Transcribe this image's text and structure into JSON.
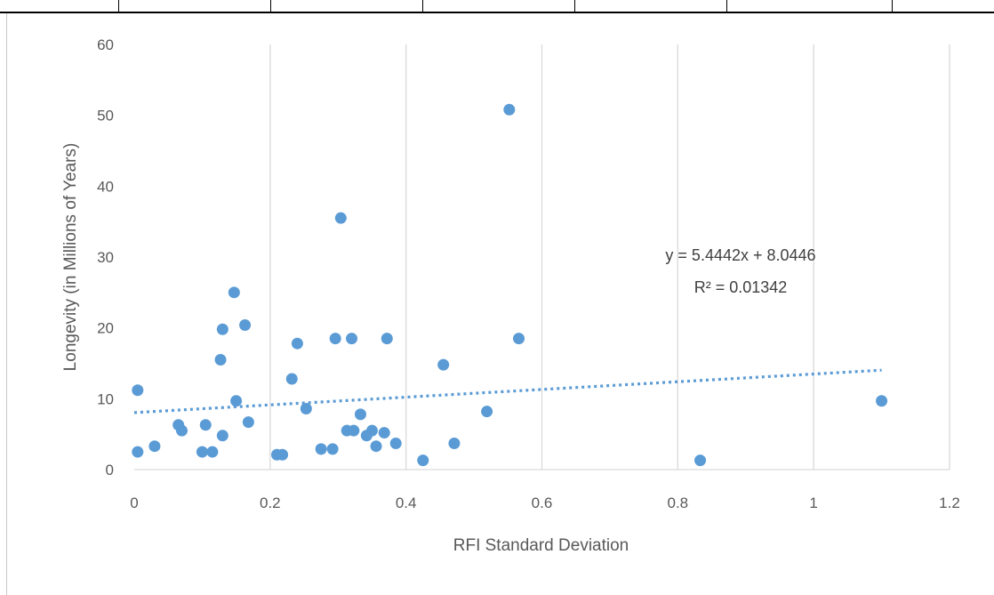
{
  "chart_data": {
    "type": "scatter",
    "title": "",
    "xlabel": "RFI Standard Deviation",
    "ylabel": "Longevity (in Millions of Years)",
    "xlim": [
      0,
      1.2
    ],
    "ylim": [
      0,
      60
    ],
    "x_ticks": [
      "0",
      "0.2",
      "0.4",
      "0.6",
      "0.8",
      "1",
      "1.2"
    ],
    "y_ticks": [
      "0",
      "10",
      "20",
      "30",
      "40",
      "50",
      "60"
    ],
    "grid": "vertical",
    "marker_color": "#5b9bd5",
    "trendline": {
      "style": "dotted linear",
      "slope": 5.4442,
      "intercept": 8.0446,
      "x_range": [
        0,
        1.1
      ],
      "equation": "y = 5.4442x + 8.0446",
      "r_squared": "R² = 0.01342"
    },
    "points": [
      {
        "x": 0.005,
        "y": 11.2
      },
      {
        "x": 0.005,
        "y": 2.5
      },
      {
        "x": 0.03,
        "y": 3.3
      },
      {
        "x": 0.065,
        "y": 6.3
      },
      {
        "x": 0.07,
        "y": 5.5
      },
      {
        "x": 0.1,
        "y": 2.5
      },
      {
        "x": 0.105,
        "y": 6.3
      },
      {
        "x": 0.115,
        "y": 2.5
      },
      {
        "x": 0.127,
        "y": 15.5
      },
      {
        "x": 0.13,
        "y": 19.8
      },
      {
        "x": 0.13,
        "y": 4.8
      },
      {
        "x": 0.147,
        "y": 25.0
      },
      {
        "x": 0.15,
        "y": 9.7
      },
      {
        "x": 0.163,
        "y": 20.4
      },
      {
        "x": 0.168,
        "y": 6.7
      },
      {
        "x": 0.21,
        "y": 2.1
      },
      {
        "x": 0.218,
        "y": 2.1
      },
      {
        "x": 0.232,
        "y": 12.8
      },
      {
        "x": 0.24,
        "y": 17.8
      },
      {
        "x": 0.253,
        "y": 8.6
      },
      {
        "x": 0.275,
        "y": 2.9
      },
      {
        "x": 0.292,
        "y": 2.9
      },
      {
        "x": 0.296,
        "y": 18.5
      },
      {
        "x": 0.304,
        "y": 35.5
      },
      {
        "x": 0.313,
        "y": 5.5
      },
      {
        "x": 0.32,
        "y": 18.5
      },
      {
        "x": 0.323,
        "y": 5.5
      },
      {
        "x": 0.333,
        "y": 7.8
      },
      {
        "x": 0.342,
        "y": 4.8
      },
      {
        "x": 0.35,
        "y": 5.5
      },
      {
        "x": 0.356,
        "y": 3.3
      },
      {
        "x": 0.368,
        "y": 5.2
      },
      {
        "x": 0.372,
        "y": 18.5
      },
      {
        "x": 0.385,
        "y": 3.7
      },
      {
        "x": 0.425,
        "y": 1.3
      },
      {
        "x": 0.455,
        "y": 14.8
      },
      {
        "x": 0.471,
        "y": 3.7
      },
      {
        "x": 0.519,
        "y": 8.2
      },
      {
        "x": 0.552,
        "y": 50.8
      },
      {
        "x": 0.566,
        "y": 18.5
      },
      {
        "x": 0.833,
        "y": 1.3
      },
      {
        "x": 1.1,
        "y": 9.7
      }
    ]
  }
}
